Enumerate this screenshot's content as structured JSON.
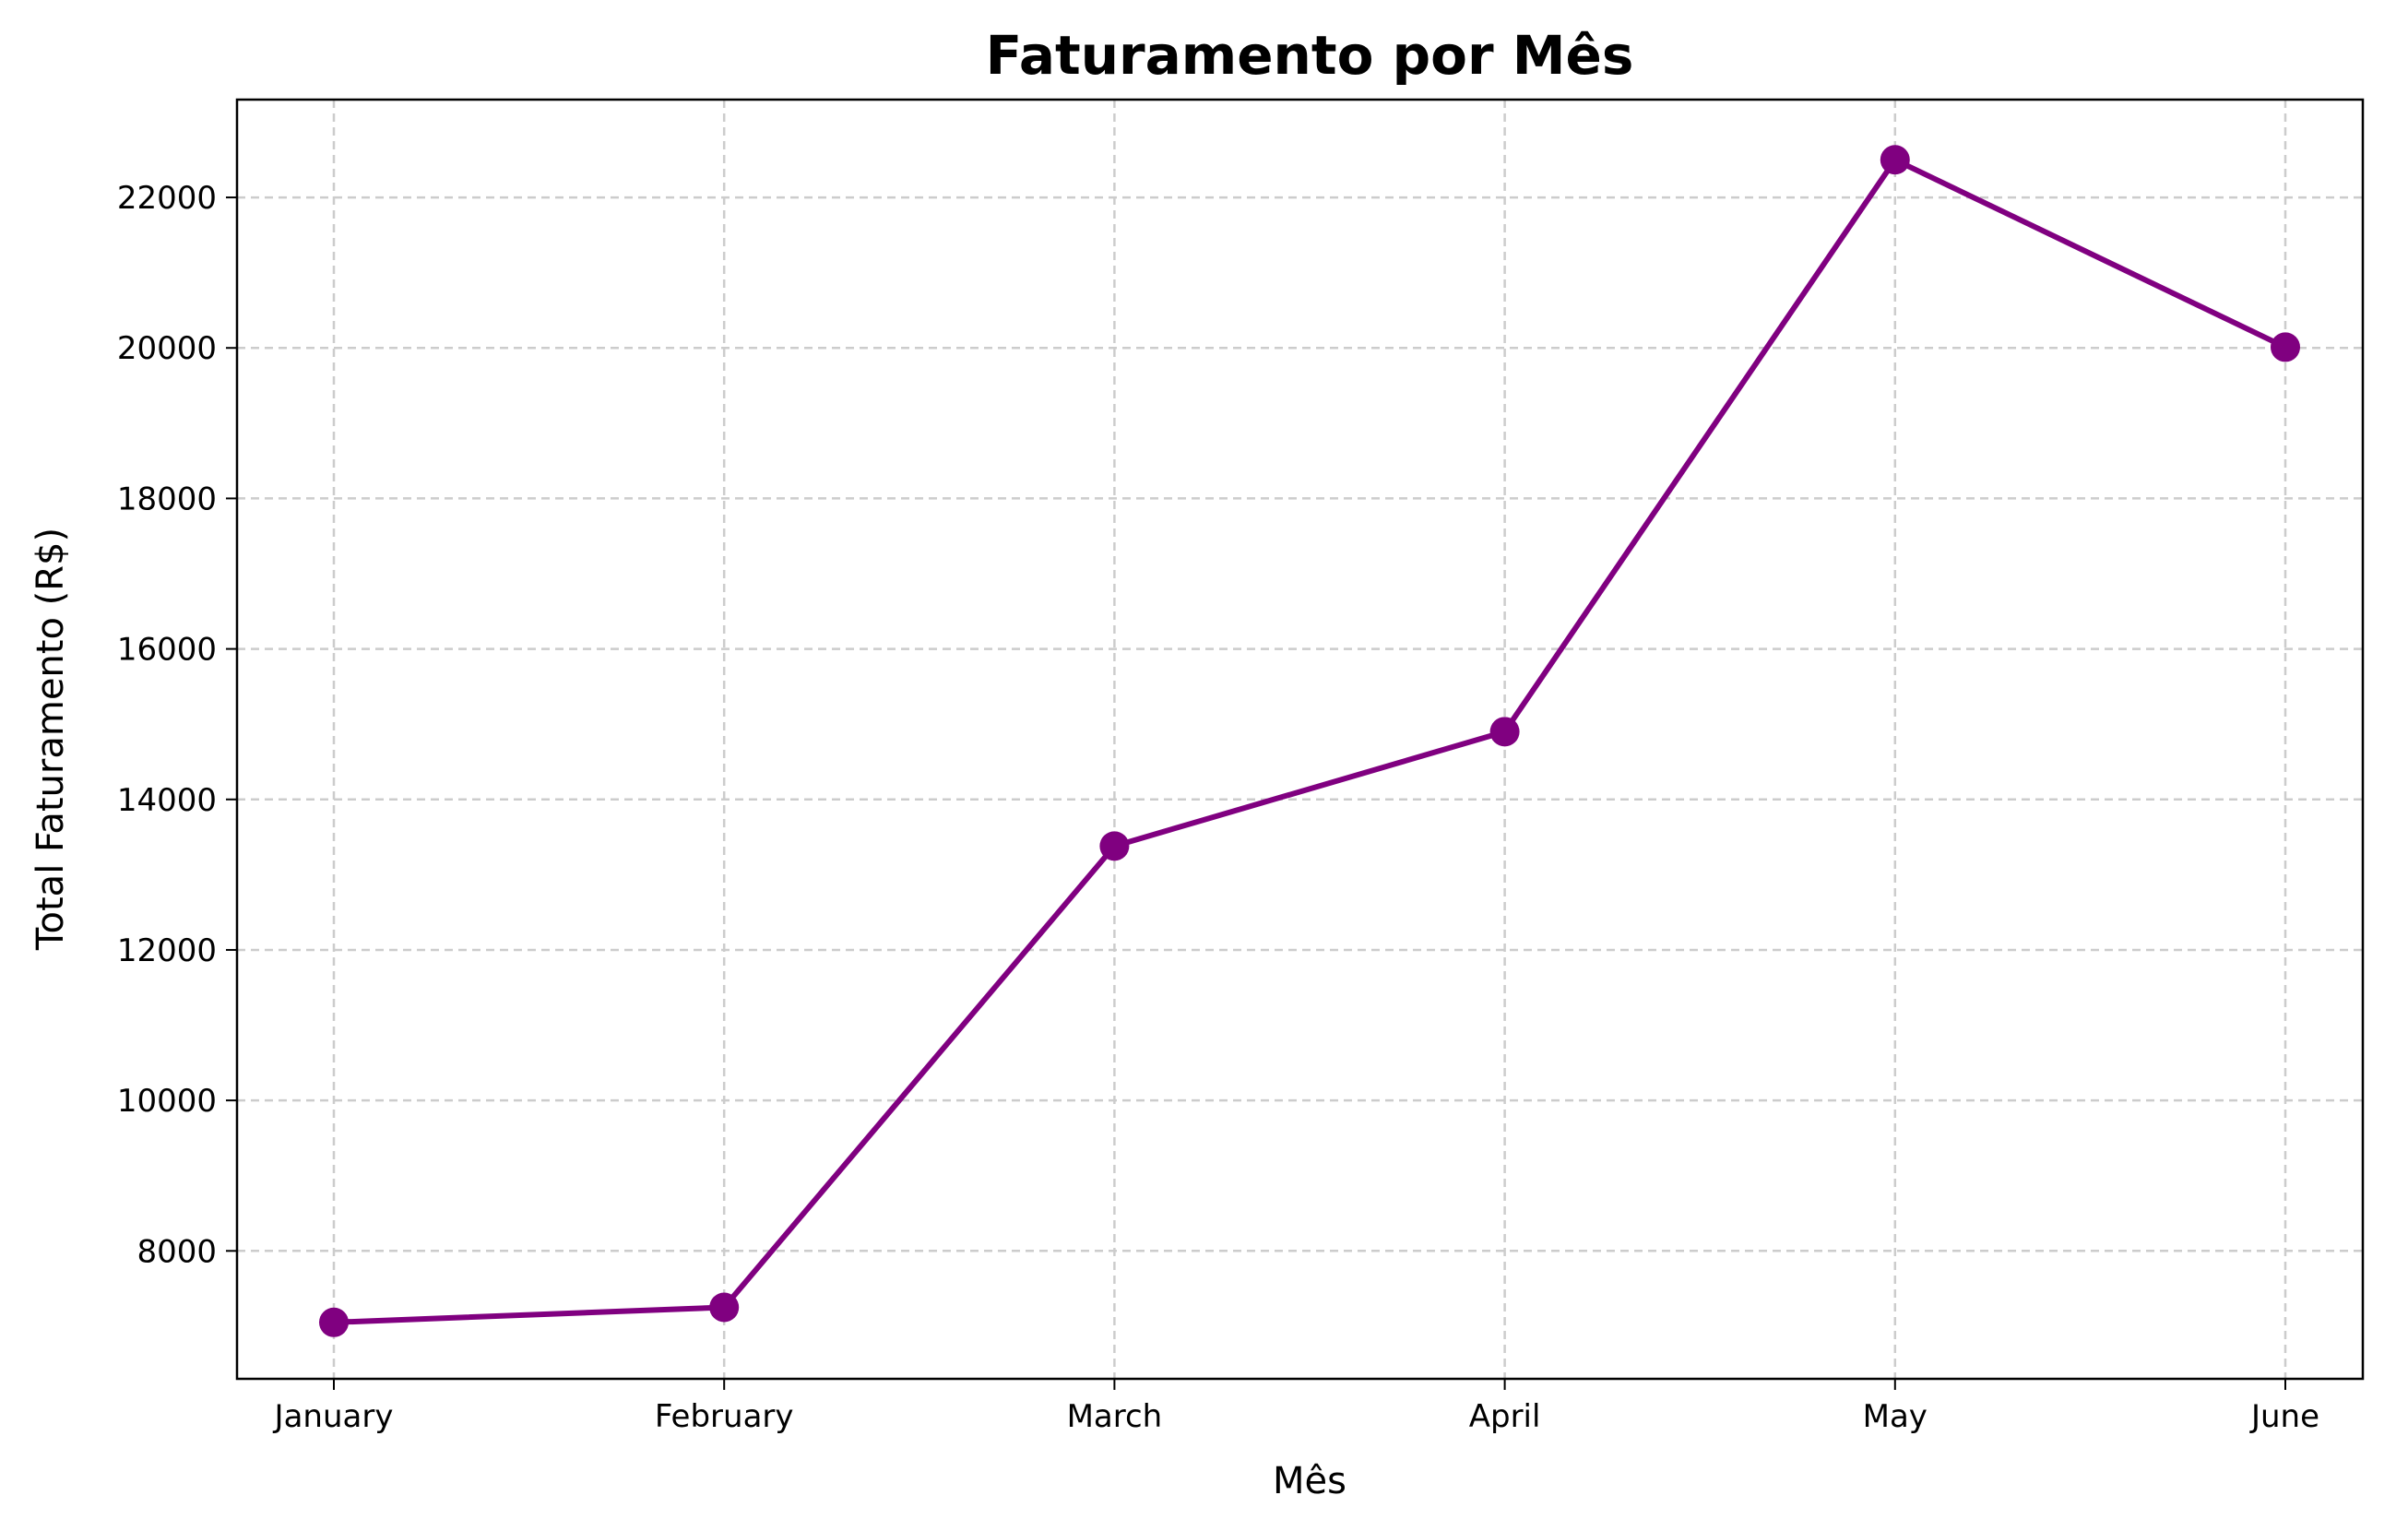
{
  "chart_data": {
    "type": "line",
    "title": "Faturamento por Mês",
    "xlabel": "Mês",
    "ylabel": "Total Faturamento (R$)",
    "categories": [
      "January",
      "February",
      "March",
      "April",
      "May",
      "June"
    ],
    "series": [
      {
        "values": [
          7050,
          7250,
          13380,
          14900,
          22500,
          20010
        ],
        "color": "#800080",
        "marker": "circle"
      }
    ],
    "ylim": [
      6300,
      23300
    ],
    "yticks": [
      8000,
      10000,
      12000,
      14000,
      16000,
      18000,
      20000,
      22000
    ],
    "grid": true,
    "legend": "none"
  }
}
